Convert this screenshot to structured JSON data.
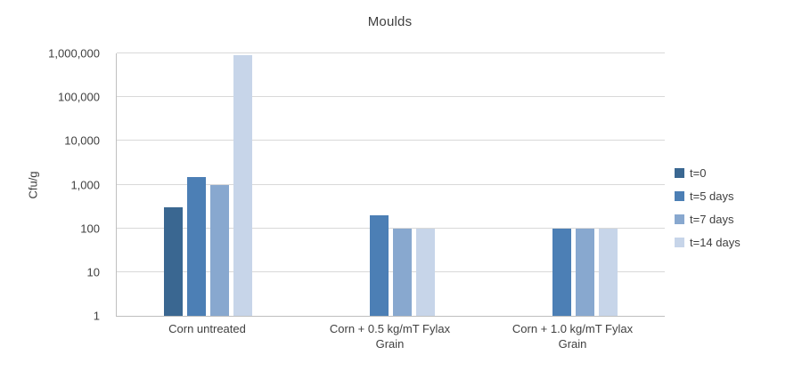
{
  "chart_data": {
    "type": "bar",
    "title": "Moulds",
    "xlabel": "",
    "ylabel": "Cfu/g",
    "scale": "log10",
    "ylim": [
      1,
      1000000
    ],
    "yticks": [
      "1",
      "10",
      "100",
      "1,000",
      "10,000",
      "100,000",
      "1,000,000"
    ],
    "grid": true,
    "legend_position": "right",
    "categories": [
      "Corn untreated",
      "Corn + 0.5 kg/mT Fylax Grain",
      "Corn + 1.0 kg/mT Fylax Grain"
    ],
    "series": [
      {
        "name": "t=0",
        "color": "#3a6791",
        "values": [
          300,
          1,
          1
        ]
      },
      {
        "name": "t=5 days",
        "color": "#4c7fb5",
        "values": [
          1500,
          200,
          100
        ]
      },
      {
        "name": "t=7 days",
        "color": "#88a8cf",
        "values": [
          1000,
          100,
          100
        ]
      },
      {
        "name": "t=14 days",
        "color": "#c7d5e9",
        "values": [
          900000,
          100,
          100
        ]
      }
    ]
  }
}
